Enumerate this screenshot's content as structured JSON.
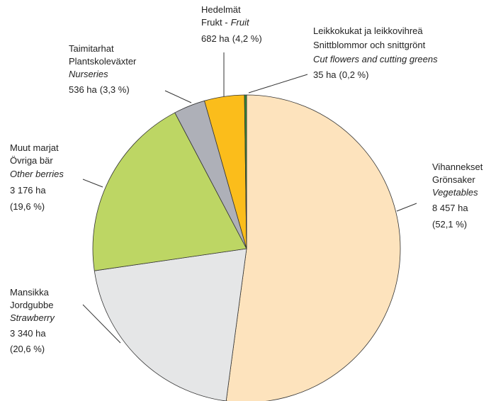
{
  "chart_data": {
    "type": "pie",
    "labels": [
      {
        "fi": "Vihannekset",
        "sv": "Grönsaker",
        "en": "Vegetables"
      },
      {
        "fi": "Mansikka",
        "sv": "Jordgubbe",
        "en": "Strawberry"
      },
      {
        "fi": "Muut marjat",
        "sv": "Övriga bär",
        "en": "Other berries"
      },
      {
        "fi": "Taimitarhat",
        "sv": "Plantskoleväxter",
        "en": "Nurseries"
      },
      {
        "fi": "Hedelmät",
        "sv": "Frukt -",
        "en": "Fruit"
      },
      {
        "fi": "Leikkokukat ja leikkovihreä",
        "sv": "Snittblommor och snittgrönt",
        "en": "Cut flowers and cutting greens"
      }
    ],
    "values": [
      8457,
      3340,
      3176,
      536,
      682,
      35
    ],
    "value_labels": [
      "8 457 ha",
      "3 340 ha",
      "3 176 ha",
      "536 ha",
      "682 ha",
      "35 ha"
    ],
    "percent_labels": [
      "(52,1 %)",
      "(20,6 %)",
      "(19,6 %)",
      "(3,3 %)",
      "(4,2 %)",
      "(0,2 %)"
    ],
    "colors": [
      "#fde3bd",
      "#e5e6e7",
      "#bdd664",
      "#aeb0b8",
      "#fbbd1b",
      "#2e8b3a"
    ]
  }
}
